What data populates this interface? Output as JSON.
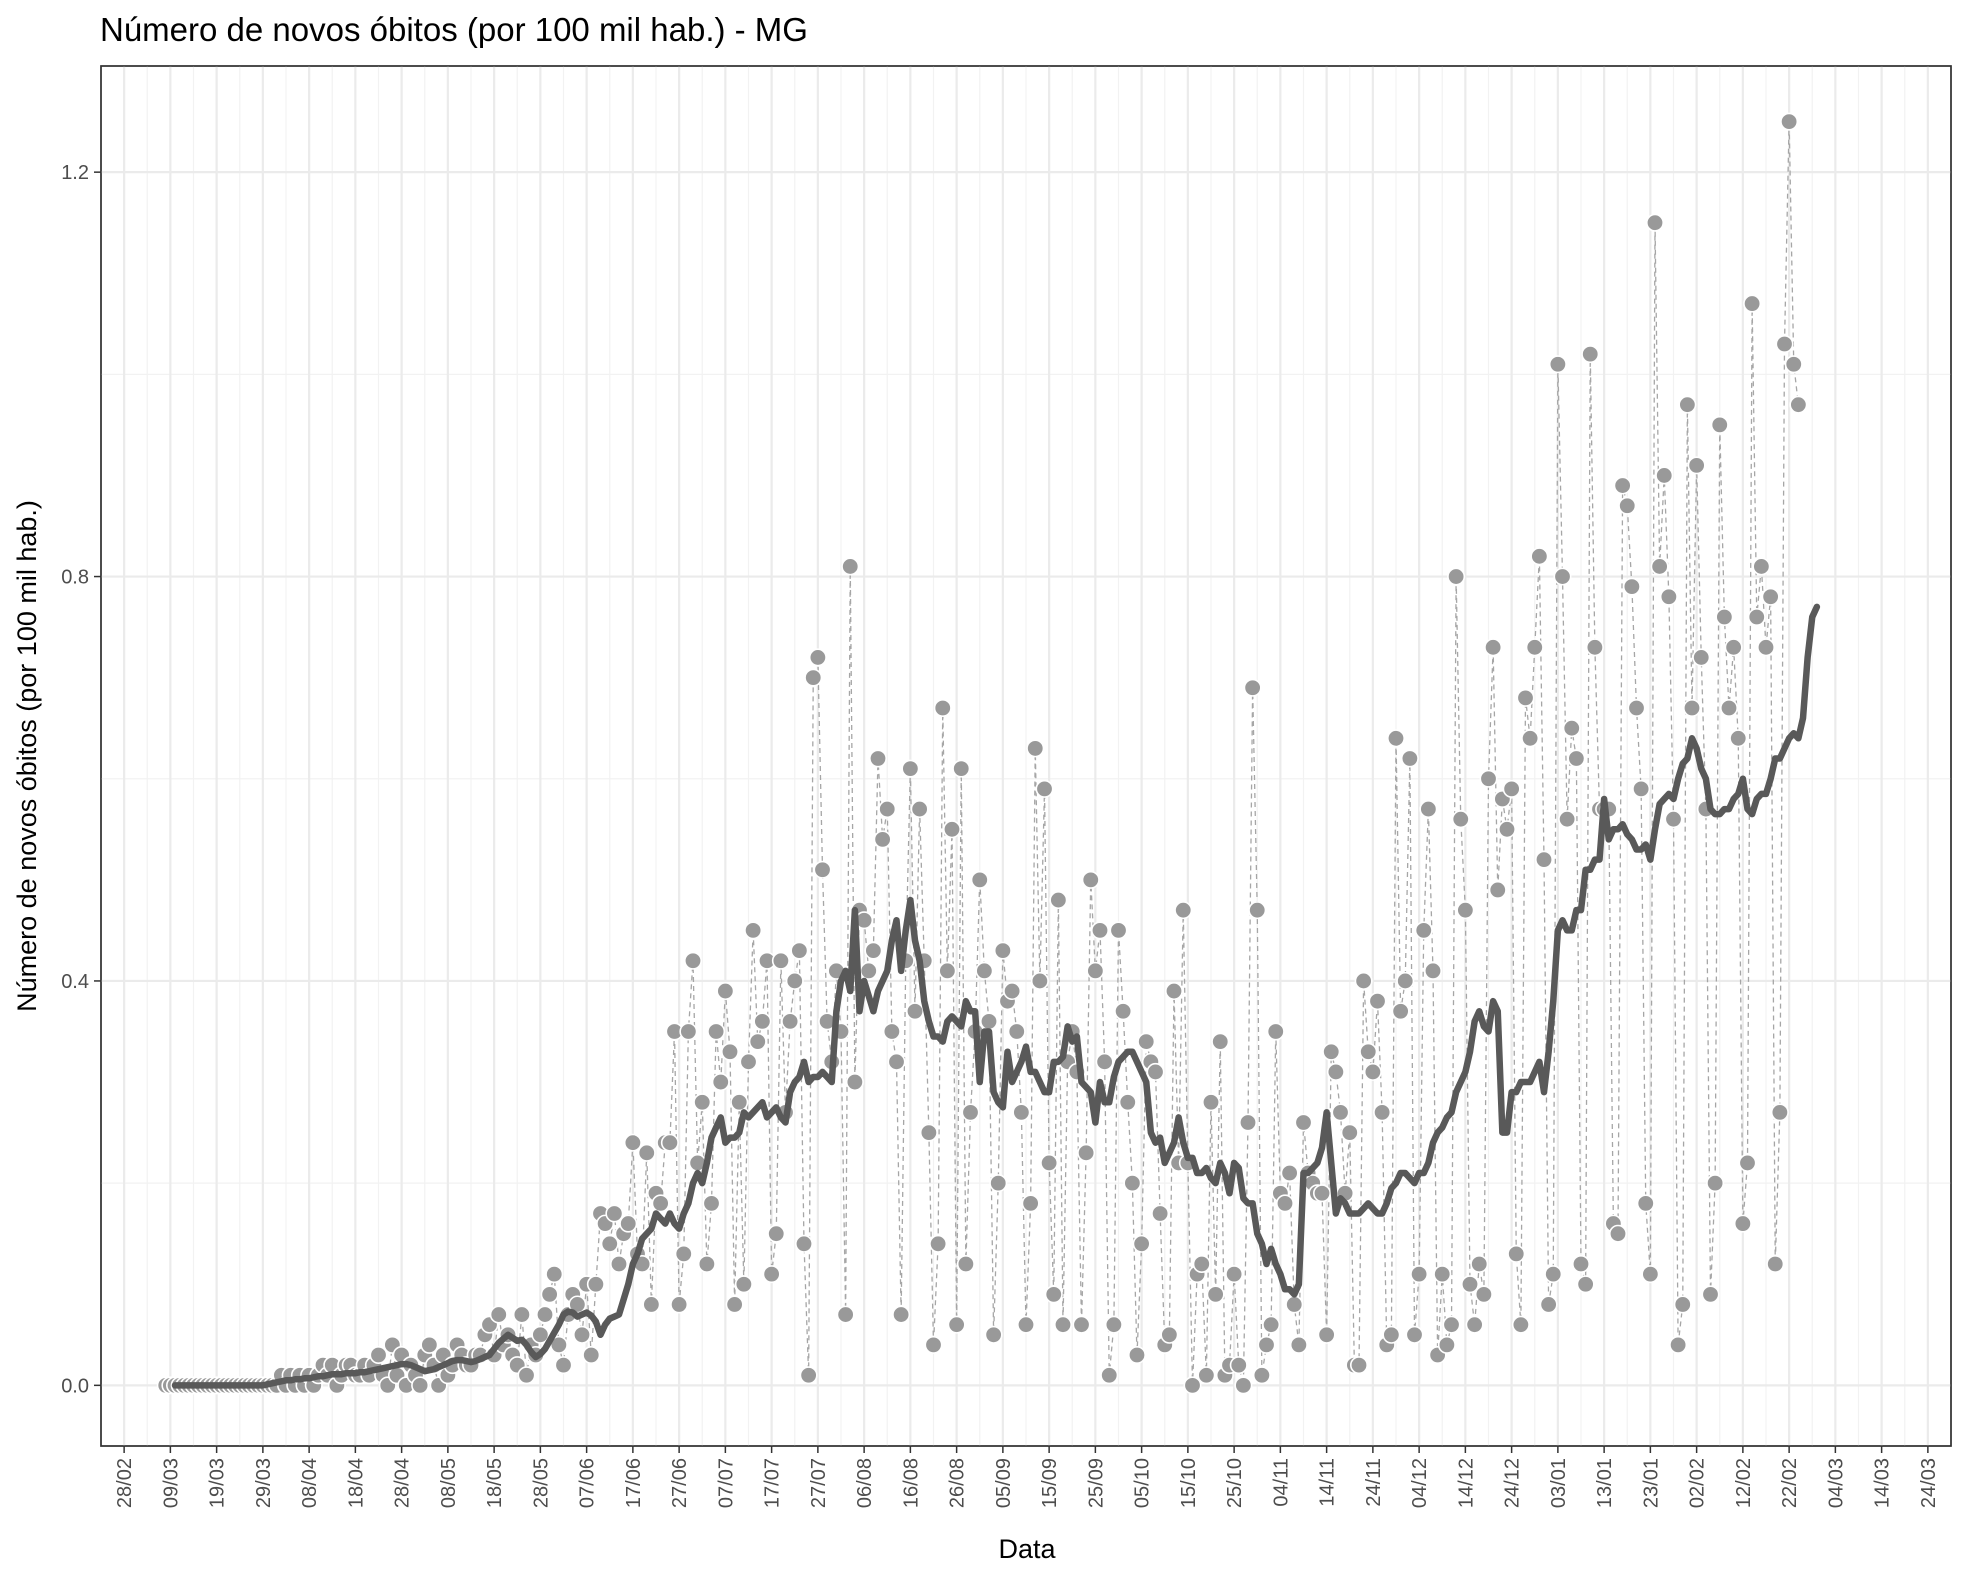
{
  "chart_data": {
    "type": "scatter",
    "title": "Número de novos óbitos (por 100 mil hab.) - MG",
    "xlabel": "Data",
    "ylabel": "Número de novos óbitos (por 100 mil hab.)",
    "ylim": [
      -0.06,
      1.305
    ],
    "y_ticks": [
      0.0,
      0.4,
      0.8,
      1.2
    ],
    "y_tick_labels": [
      "0.0",
      "0.4",
      "0.8",
      "1.2"
    ],
    "x_range": [
      "2020-02-23",
      "2021-03-29"
    ],
    "x_ticks": [
      "2020-02-28",
      "2020-03-09",
      "2020-03-19",
      "2020-03-29",
      "2020-04-08",
      "2020-04-18",
      "2020-04-28",
      "2020-05-08",
      "2020-05-18",
      "2020-05-28",
      "2020-06-07",
      "2020-06-17",
      "2020-06-27",
      "2020-07-07",
      "2020-07-17",
      "2020-07-27",
      "2020-08-06",
      "2020-08-16",
      "2020-08-26",
      "2020-09-05",
      "2020-09-15",
      "2020-09-25",
      "2020-10-05",
      "2020-10-15",
      "2020-10-25",
      "2020-11-04",
      "2020-11-14",
      "2020-11-24",
      "2020-12-04",
      "2020-12-14",
      "2020-12-24",
      "2021-01-03",
      "2021-01-13",
      "2021-01-23",
      "2021-02-02",
      "2021-02-12",
      "2021-02-22",
      "2021-03-04",
      "2021-03-14",
      "2021-03-24"
    ],
    "x_tick_labels": [
      "28/02",
      "09/03",
      "19/03",
      "29/03",
      "08/04",
      "18/04",
      "28/04",
      "08/05",
      "18/05",
      "28/05",
      "07/06",
      "17/06",
      "27/06",
      "07/07",
      "17/07",
      "27/07",
      "06/08",
      "16/08",
      "26/08",
      "05/09",
      "15/09",
      "25/09",
      "05/10",
      "15/10",
      "25/10",
      "04/11",
      "14/11",
      "24/11",
      "04/12",
      "14/12",
      "24/12",
      "03/01",
      "13/01",
      "23/01",
      "02/02",
      "12/02",
      "22/02",
      "04/03",
      "14/03",
      "24/03"
    ],
    "grid": true,
    "legend": "none",
    "series": [
      {
        "kind": "points-daily",
        "color": "#999999",
        "x_start": "2020-03-08",
        "values": [
          0.0,
          0.0,
          0.0,
          0.0,
          0.0,
          0.0,
          0.0,
          0.0,
          0.0,
          0.0,
          0.0,
          0.0,
          0.0,
          0.0,
          0.0,
          0.0,
          0.0,
          0.0,
          0.0,
          0.0,
          0.0,
          0.0,
          0.0,
          0.0,
          0.0,
          0.01,
          0.0,
          0.01,
          0.0,
          0.01,
          0.0,
          0.01,
          0.0,
          0.01,
          0.02,
          0.01,
          0.02,
          0.0,
          0.01,
          0.02,
          0.02,
          0.01,
          0.01,
          0.02,
          0.01,
          0.02,
          0.03,
          0.01,
          0.0,
          0.04,
          0.01,
          0.03,
          0.0,
          0.02,
          0.01,
          0.0,
          0.03,
          0.04,
          0.02,
          0.0,
          0.03,
          0.01,
          0.02,
          0.04,
          0.03,
          0.02,
          0.02,
          0.03,
          0.03,
          0.05,
          0.06,
          0.03,
          0.07,
          0.04,
          0.05,
          0.03,
          0.02,
          0.07,
          0.01,
          0.04,
          0.03,
          0.05,
          0.07,
          0.09,
          0.11,
          0.04,
          0.02,
          0.07,
          0.09,
          0.08,
          0.05,
          0.1,
          0.03,
          0.1,
          0.17,
          0.16,
          0.14,
          0.17,
          0.12,
          0.15,
          0.16,
          0.24,
          0.13,
          0.12,
          0.23,
          0.08,
          0.19,
          0.18,
          0.24,
          0.24,
          0.35,
          0.08,
          0.13,
          0.35,
          0.42,
          0.22,
          0.28,
          0.12,
          0.18,
          0.35,
          0.3,
          0.39,
          0.33,
          0.08,
          0.28,
          0.1,
          0.32,
          0.45,
          0.34,
          0.36,
          0.42,
          0.11,
          0.15,
          0.42,
          0.27,
          0.36,
          0.4,
          0.43,
          0.14,
          0.01,
          0.7,
          0.72,
          0.51,
          0.36,
          0.32,
          0.41,
          0.35,
          0.07,
          0.81,
          0.3,
          0.47,
          0.46,
          0.41,
          0.43,
          0.62,
          0.54,
          0.57,
          0.35,
          0.32,
          0.07,
          0.42,
          0.61,
          0.37,
          0.57,
          0.42,
          0.25,
          0.04,
          0.14,
          0.67,
          0.41,
          0.55,
          0.06,
          0.61,
          0.12,
          0.27,
          0.35,
          0.5,
          0.41,
          0.36,
          0.05,
          0.2,
          0.43,
          0.38,
          0.39,
          0.35,
          0.27,
          0.06,
          0.18,
          0.63,
          0.4,
          0.59,
          0.22,
          0.09,
          0.48,
          0.06,
          0.32,
          0.35,
          0.31,
          0.06,
          0.23,
          0.5,
          0.41,
          0.45,
          0.32,
          0.01,
          0.06,
          0.45,
          0.37,
          0.28,
          0.2,
          0.03,
          0.14,
          0.34,
          0.32,
          0.31,
          0.17,
          0.04,
          0.05,
          0.39,
          0.22,
          0.47,
          0.22,
          0.0,
          0.11,
          0.12,
          0.01,
          0.28,
          0.09,
          0.34,
          0.01,
          0.02,
          0.11,
          0.02,
          0.0,
          0.26,
          0.69,
          0.47,
          0.01,
          0.04,
          0.06,
          0.35,
          0.19,
          0.18,
          0.21,
          0.08,
          0.04,
          0.26,
          0.21,
          0.2,
          0.19,
          0.19,
          0.05,
          0.33,
          0.31,
          0.27,
          0.19,
          0.25,
          0.02,
          0.02,
          0.4,
          0.33,
          0.31,
          0.38,
          0.27,
          0.04,
          0.05,
          0.64,
          0.37,
          0.4,
          0.62,
          0.05,
          0.11,
          0.45,
          0.57,
          0.41,
          0.03,
          0.11,
          0.04,
          0.06,
          0.8,
          0.56,
          0.47,
          0.1,
          0.06,
          0.12,
          0.09,
          0.6,
          0.73,
          0.49,
          0.58,
          0.55,
          0.59,
          0.13,
          0.06,
          0.68,
          0.64,
          0.73,
          0.82,
          0.52,
          0.08,
          0.11,
          1.01,
          0.8,
          0.56,
          0.65,
          0.62,
          0.12,
          0.1,
          1.02,
          0.73,
          0.57,
          0.57,
          0.57,
          0.16,
          0.15,
          0.89,
          0.87,
          0.79,
          0.67,
          0.59,
          0.18,
          0.11,
          1.15,
          0.81,
          0.9,
          0.78,
          0.56,
          0.04,
          0.08,
          0.97,
          0.67,
          0.91,
          0.72,
          0.57,
          0.09,
          0.2,
          0.95,
          0.76,
          0.67,
          0.73,
          0.64,
          0.16,
          0.22,
          1.07,
          0.76,
          0.81,
          0.73,
          0.78,
          0.12,
          0.27,
          1.03,
          1.25,
          1.01,
          0.97
        ]
      },
      {
        "kind": "moving-average-line",
        "color": "#595959",
        "x_start": "2020-03-10",
        "values": [
          0.0,
          0.0,
          0.0,
          0.0,
          0.0,
          0.0,
          0.0,
          0.0,
          0.0,
          0.0,
          0.0,
          0.0,
          0.0,
          0.0,
          0.0,
          0.0,
          0.0,
          0.0,
          0.0,
          0.0,
          0.001,
          0.002,
          0.003,
          0.004,
          0.005,
          0.005,
          0.006,
          0.006,
          0.007,
          0.007,
          0.008,
          0.009,
          0.009,
          0.01,
          0.011,
          0.011,
          0.011,
          0.012,
          0.012,
          0.012,
          0.013,
          0.013,
          0.014,
          0.015,
          0.016,
          0.017,
          0.018,
          0.019,
          0.02,
          0.021,
          0.021,
          0.02,
          0.018,
          0.016,
          0.014,
          0.015,
          0.016,
          0.018,
          0.02,
          0.022,
          0.024,
          0.025,
          0.025,
          0.024,
          0.023,
          0.024,
          0.026,
          0.028,
          0.03,
          0.036,
          0.042,
          0.046,
          0.05,
          0.047,
          0.044,
          0.045,
          0.04,
          0.033,
          0.028,
          0.031,
          0.036,
          0.044,
          0.052,
          0.06,
          0.07,
          0.073,
          0.072,
          0.068,
          0.07,
          0.072,
          0.069,
          0.063,
          0.05,
          0.06,
          0.066,
          0.068,
          0.07,
          0.085,
          0.1,
          0.12,
          0.13,
          0.145,
          0.15,
          0.155,
          0.17,
          0.165,
          0.16,
          0.17,
          0.16,
          0.155,
          0.17,
          0.18,
          0.2,
          0.21,
          0.2,
          0.22,
          0.245,
          0.255,
          0.265,
          0.24,
          0.245,
          0.245,
          0.25,
          0.27,
          0.265,
          0.27,
          0.275,
          0.28,
          0.265,
          0.27,
          0.275,
          0.265,
          0.26,
          0.29,
          0.3,
          0.305,
          0.32,
          0.3,
          0.305,
          0.305,
          0.31,
          0.305,
          0.3,
          0.37,
          0.4,
          0.41,
          0.39,
          0.47,
          0.37,
          0.4,
          0.385,
          0.37,
          0.39,
          0.4,
          0.41,
          0.44,
          0.46,
          0.41,
          0.45,
          0.48,
          0.44,
          0.42,
          0.38,
          0.36,
          0.345,
          0.345,
          0.34,
          0.36,
          0.365,
          0.36,
          0.355,
          0.38,
          0.37,
          0.37,
          0.3,
          0.35,
          0.35,
          0.29,
          0.28,
          0.275,
          0.33,
          0.3,
          0.31,
          0.32,
          0.335,
          0.31,
          0.31,
          0.3,
          0.29,
          0.29,
          0.32,
          0.32,
          0.325,
          0.355,
          0.34,
          0.345,
          0.3,
          0.295,
          0.29,
          0.26,
          0.3,
          0.28,
          0.28,
          0.305,
          0.32,
          0.325,
          0.33,
          0.33,
          0.32,
          0.31,
          0.3,
          0.25,
          0.24,
          0.245,
          0.22,
          0.23,
          0.24,
          0.265,
          0.24,
          0.225,
          0.225,
          0.21,
          0.21,
          0.215,
          0.205,
          0.2,
          0.22,
          0.21,
          0.19,
          0.22,
          0.215,
          0.185,
          0.18,
          0.18,
          0.15,
          0.14,
          0.12,
          0.135,
          0.12,
          0.11,
          0.095,
          0.095,
          0.09,
          0.1,
          0.21,
          0.21,
          0.215,
          0.22,
          0.235,
          0.27,
          0.22,
          0.17,
          0.185,
          0.18,
          0.17,
          0.17,
          0.17,
          0.175,
          0.18,
          0.175,
          0.17,
          0.17,
          0.18,
          0.195,
          0.2,
          0.21,
          0.21,
          0.205,
          0.2,
          0.21,
          0.21,
          0.22,
          0.24,
          0.25,
          0.255,
          0.265,
          0.27,
          0.29,
          0.3,
          0.31,
          0.33,
          0.36,
          0.37,
          0.355,
          0.35,
          0.38,
          0.37,
          0.25,
          0.25,
          0.29,
          0.29,
          0.3,
          0.3,
          0.3,
          0.31,
          0.32,
          0.29,
          0.33,
          0.38,
          0.45,
          0.46,
          0.45,
          0.45,
          0.47,
          0.47,
          0.51,
          0.51,
          0.52,
          0.52,
          0.58,
          0.54,
          0.55,
          0.55,
          0.555,
          0.545,
          0.54,
          0.53,
          0.53,
          0.535,
          0.52,
          0.55,
          0.575,
          0.58,
          0.585,
          0.58,
          0.6,
          0.615,
          0.62,
          0.64,
          0.63,
          0.61,
          0.6,
          0.57,
          0.565,
          0.565,
          0.57,
          0.57,
          0.58,
          0.585,
          0.6,
          0.57,
          0.565,
          0.58,
          0.585,
          0.585,
          0.6,
          0.62,
          0.62,
          0.63,
          0.64,
          0.645,
          0.64,
          0.66,
          0.72,
          0.76,
          0.77
        ]
      }
    ]
  }
}
